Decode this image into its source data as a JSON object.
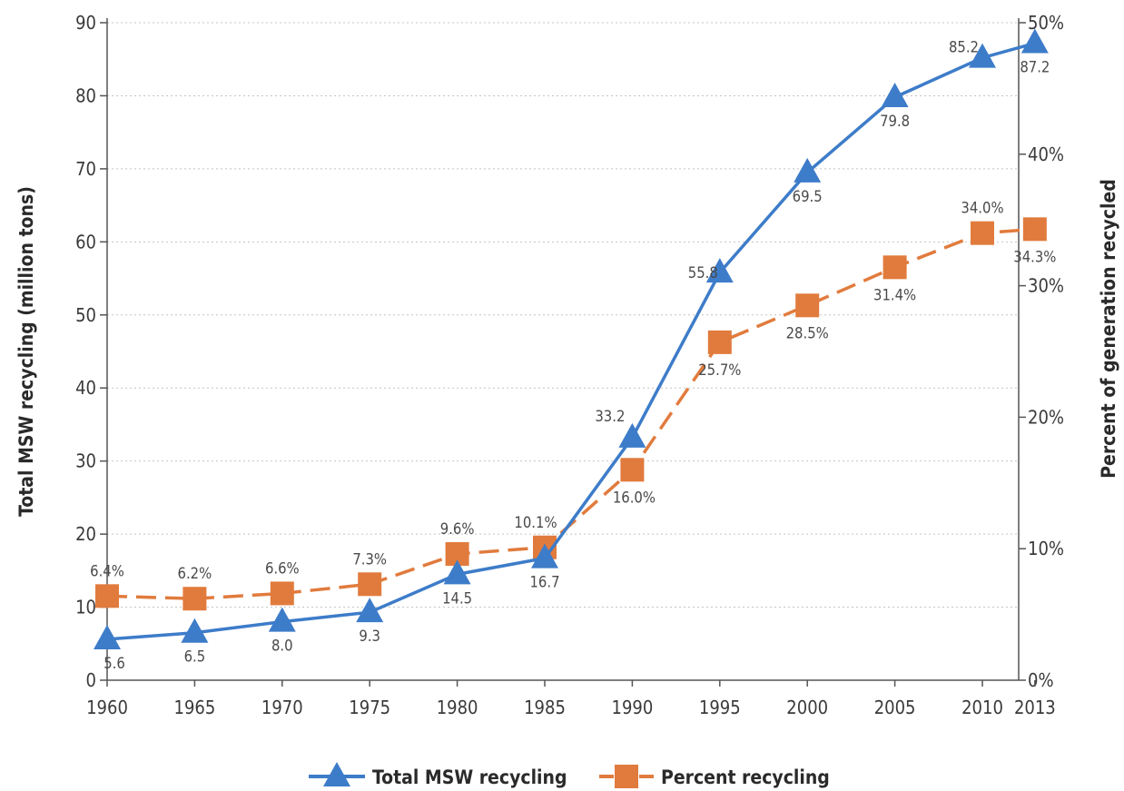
{
  "chart_data": {
    "type": "line",
    "x": [
      1960,
      1965,
      1970,
      1975,
      1980,
      1985,
      1990,
      1995,
      2000,
      2005,
      2010,
      2013
    ],
    "x_tick_labels": [
      "1960",
      "1965",
      "1970",
      "1975",
      "1980",
      "1985",
      "1990",
      "1995",
      "2000",
      "2005",
      "2010",
      "2013"
    ],
    "ylabel_left": "Total MSW recycling (million tons)",
    "ylabel_right": "Percent of generation recycled",
    "ylim_left": [
      0,
      90
    ],
    "ylim_right": [
      0,
      50
    ],
    "y_left_ticks": [
      "0",
      "10",
      "20",
      "30",
      "40",
      "50",
      "60",
      "70",
      "80",
      "90"
    ],
    "y_right_ticks": [
      "0%",
      "10%",
      "20%",
      "30%",
      "40%",
      "50%"
    ],
    "grid": true,
    "legend_position": "bottom-center",
    "series": [
      {
        "name": "Total MSW recycling",
        "axis": "left",
        "marker": "triangle",
        "line_style": "solid",
        "color": "#3d7cc9",
        "values": [
          5.6,
          6.5,
          8.0,
          9.3,
          14.5,
          16.7,
          33.2,
          55.8,
          69.5,
          79.8,
          85.2,
          87.2
        ],
        "labels": [
          "5.6",
          "6.5",
          "8.0",
          "9.3",
          "14.5",
          "16.7",
          "33.2",
          "55.8",
          "69.5",
          "79.8",
          "85.2",
          "87.2"
        ]
      },
      {
        "name": "Percent recycling",
        "axis": "right",
        "marker": "square",
        "line_style": "dashed",
        "color": "#e17b3d",
        "values": [
          6.4,
          6.2,
          6.6,
          7.3,
          9.6,
          10.1,
          16.0,
          25.7,
          28.5,
          31.4,
          34.0,
          34.3
        ],
        "labels": [
          "6.4%",
          "6.2%",
          "6.6%",
          "7.3%",
          "9.6%",
          "10.1%",
          "16.0%",
          "25.7%",
          "28.5%",
          "31.4%",
          "34.0%",
          "34.3%"
        ]
      }
    ]
  }
}
